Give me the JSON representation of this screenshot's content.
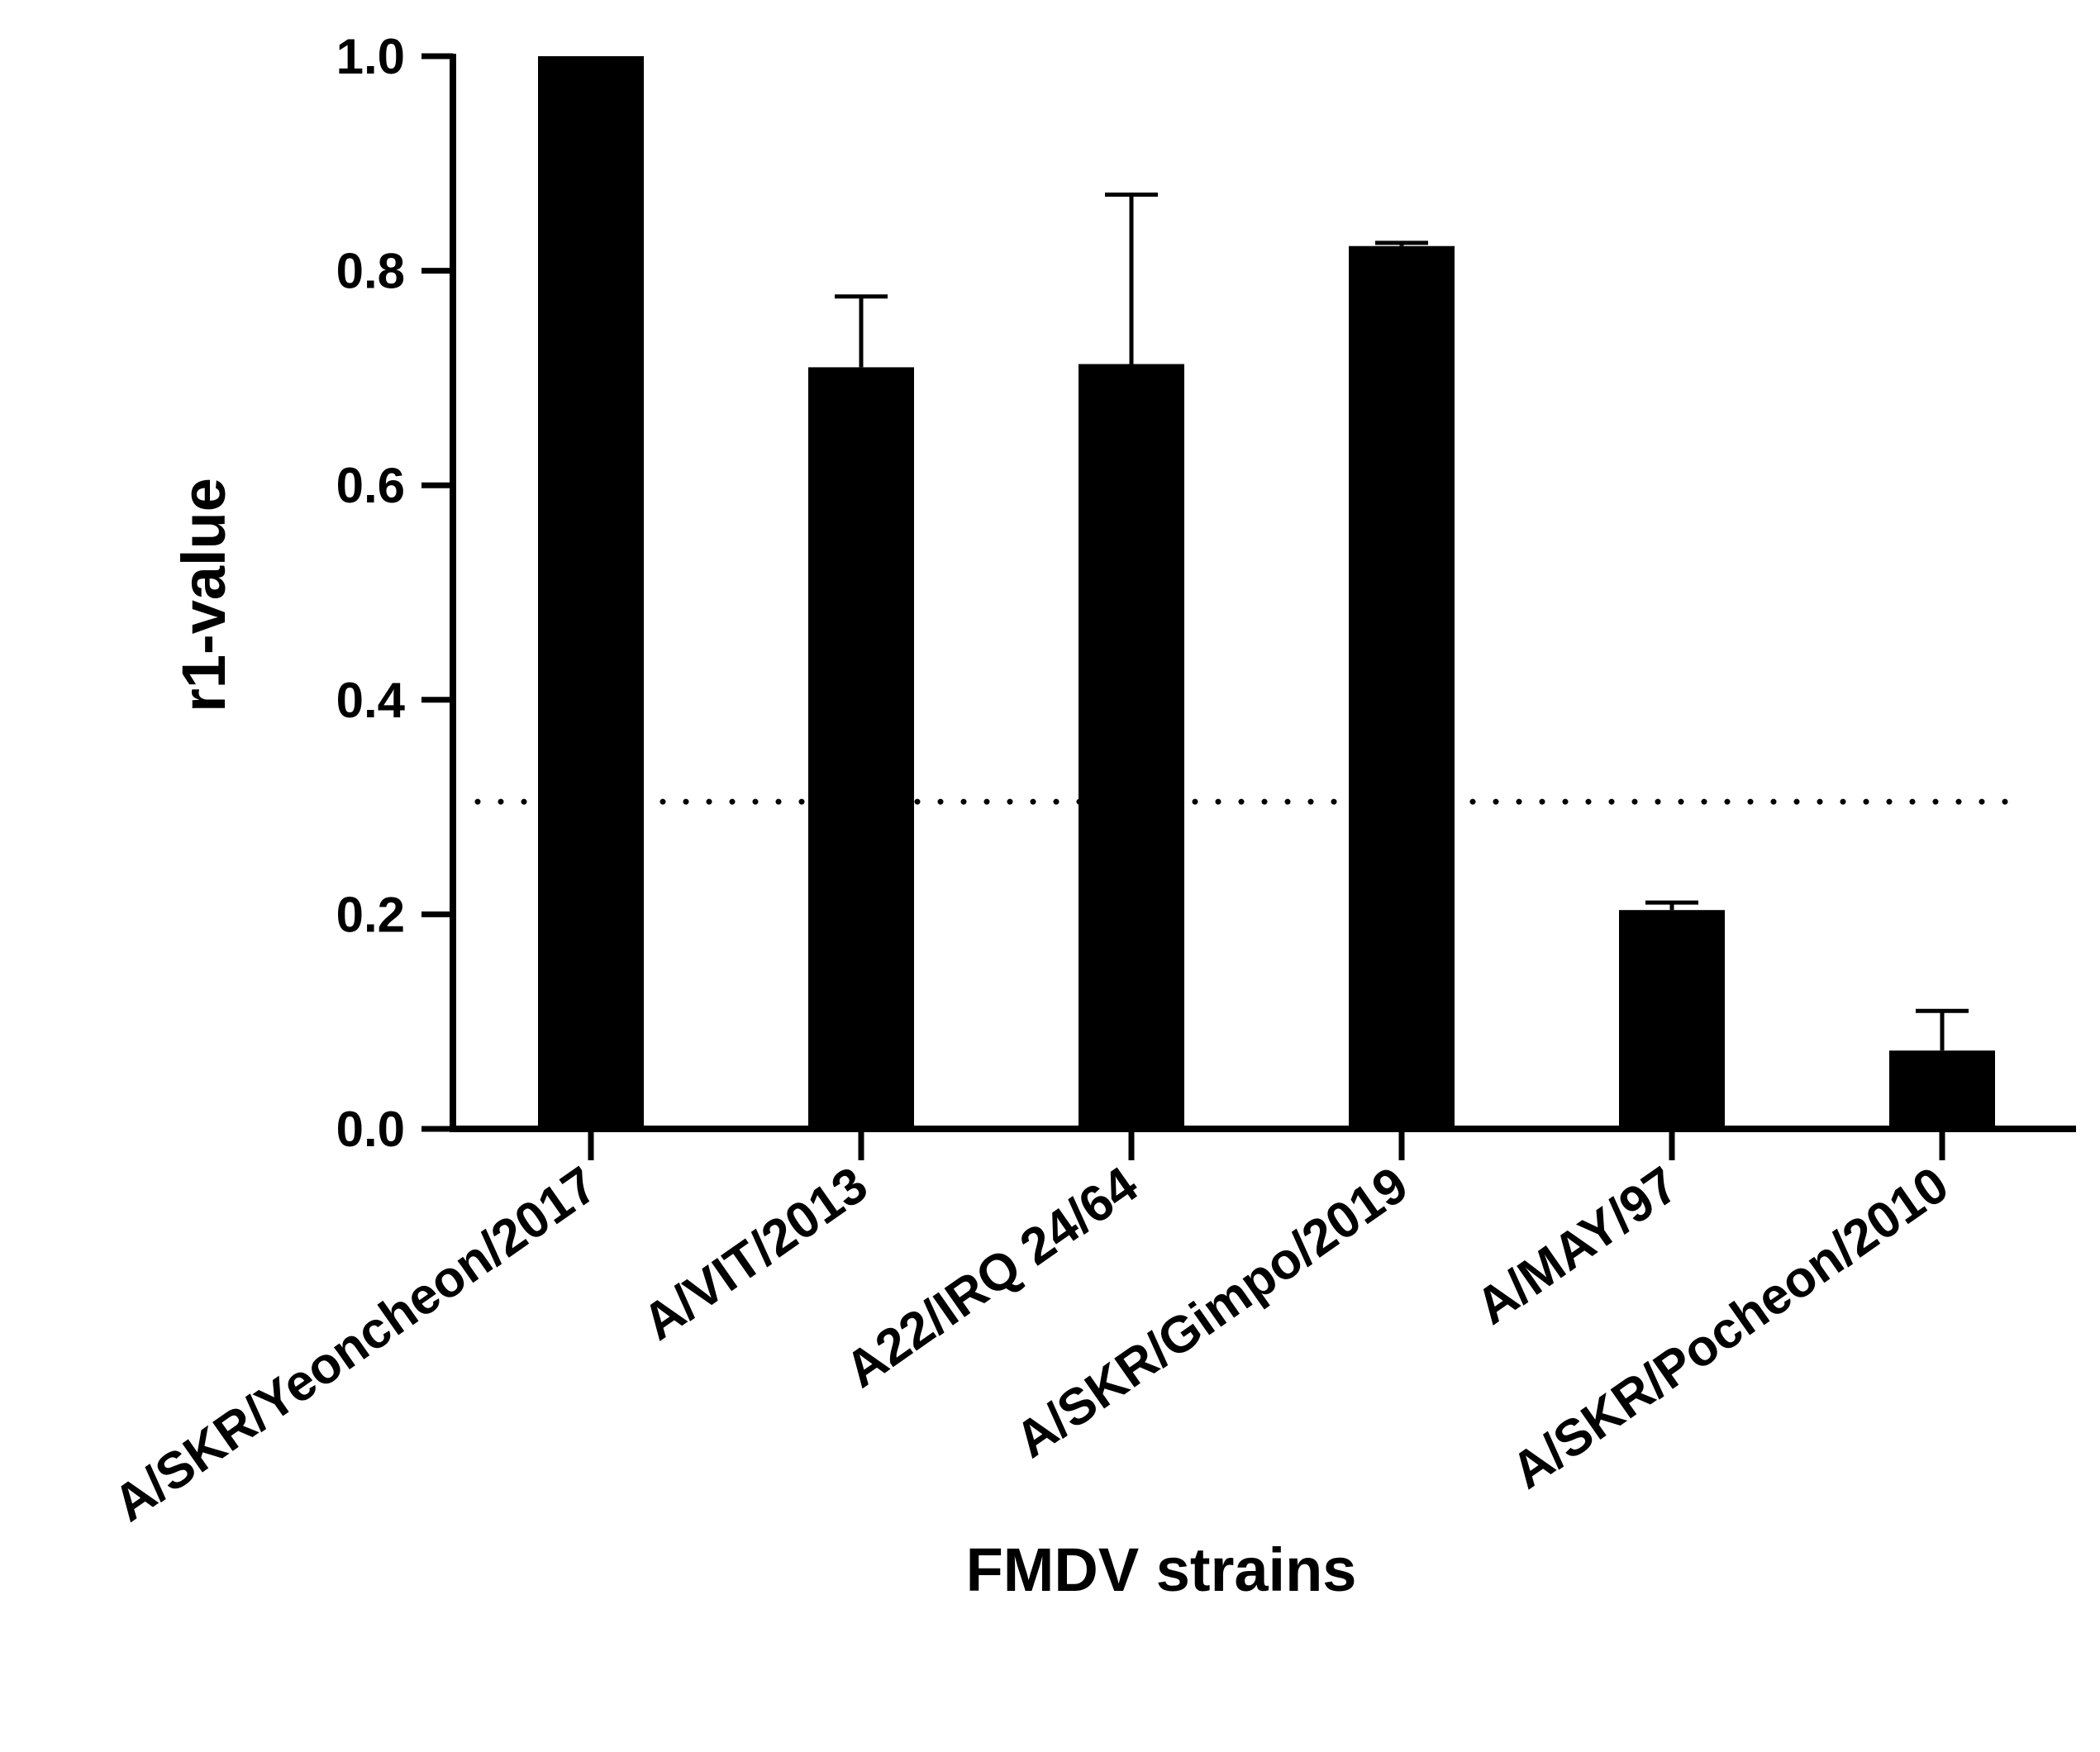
{
  "chart_data": {
    "type": "bar",
    "xlabel": "FMDV strains",
    "ylabel": "r1-value",
    "ylim": [
      0,
      1.0
    ],
    "yticks": [
      "0.0",
      "0.2",
      "0.4",
      "0.6",
      "0.8",
      "1.0"
    ],
    "categories": [
      "A/SKR/Yeoncheon/2017",
      "A/VIT/2013",
      "A22/IRQ 24/64",
      "A/SKR/Gimpo/2019",
      "A/MAY/97",
      "A/SKR/Pocheon/2010"
    ],
    "values": [
      1.0,
      0.71,
      0.713,
      0.823,
      0.204,
      0.073
    ],
    "error_upper": [
      0.0,
      0.066,
      0.158,
      0.003,
      0.007,
      0.037
    ],
    "reference_line": 0.305,
    "grid": false,
    "colors": {
      "bar": "#000000",
      "axis": "#000000",
      "background": "#ffffff"
    }
  }
}
